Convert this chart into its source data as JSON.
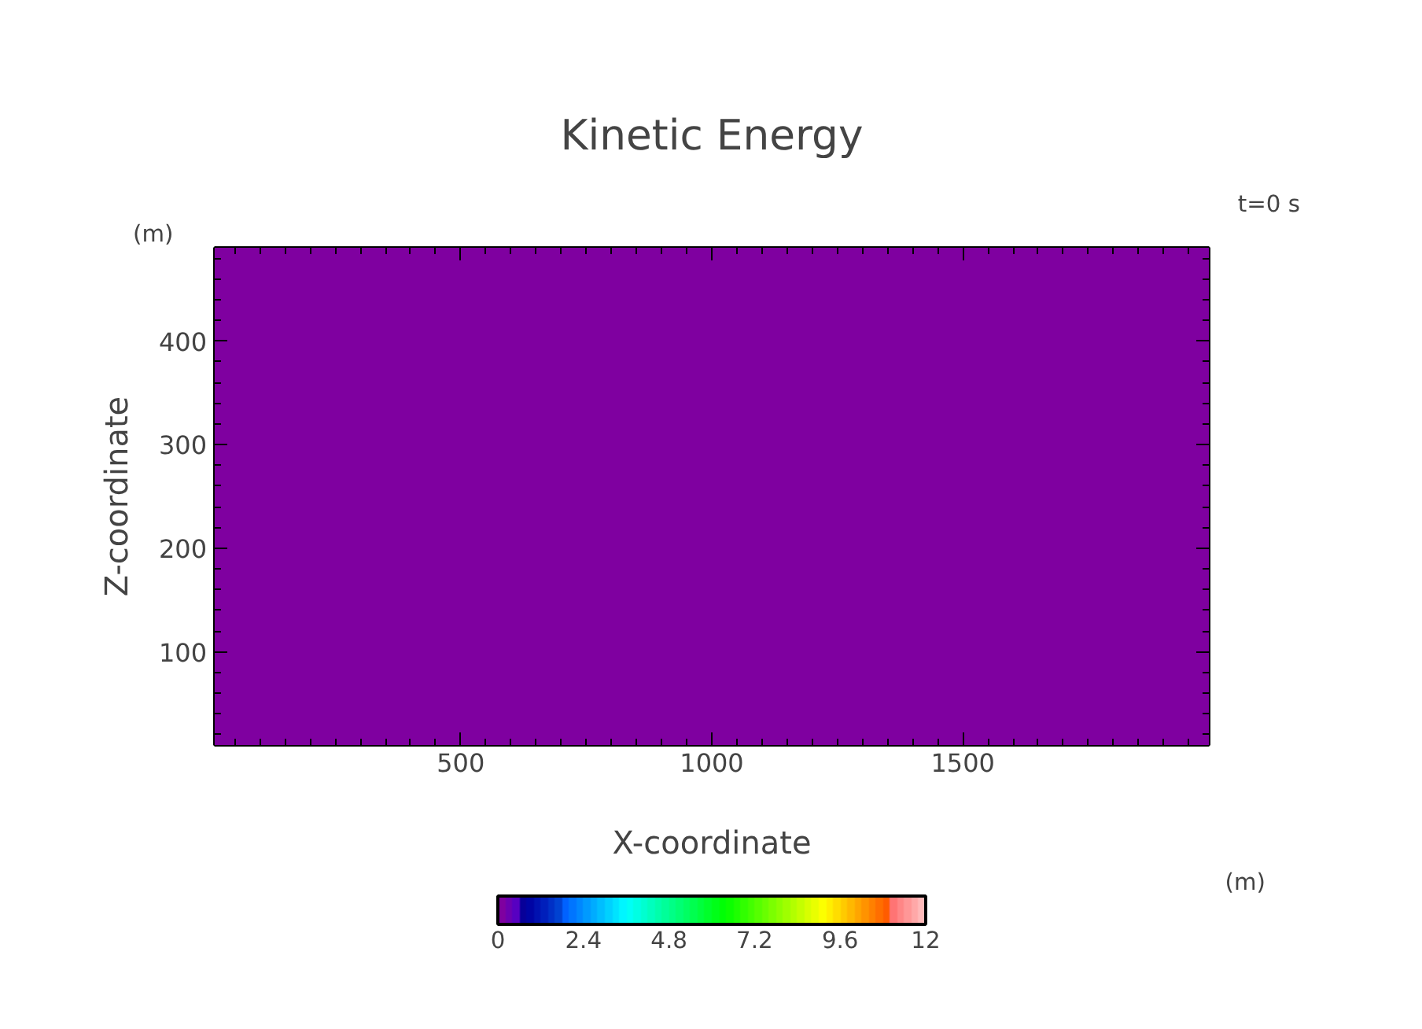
{
  "chart_data": {
    "type": "heatmap",
    "title": "Kinetic Energy",
    "xlabel": "X-coordinate",
    "ylabel": "Z-coordinate",
    "annotations": [
      "(m)",
      "(m)",
      "t=0 s"
    ],
    "cells": [
      [
        0
      ]
    ],
    "xlim": [
      10,
      1990
    ],
    "ylim": [
      10,
      490
    ],
    "xticks": [
      500,
      1000,
      1500
    ],
    "yticks": [
      100,
      200,
      300,
      400
    ],
    "clim": [
      0,
      12
    ],
    "cticks": [
      0,
      2.4,
      4.8,
      7.2,
      9.6,
      12
    ],
    "grid": false
  }
}
